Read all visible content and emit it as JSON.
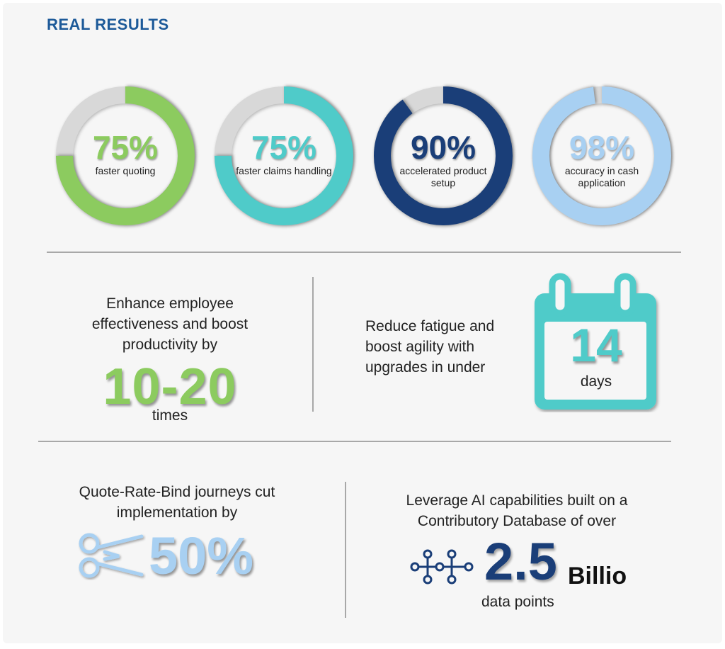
{
  "heading": "REAL RESULTS",
  "colors": {
    "heading": "#1d5a99",
    "track": "#d8d8d8",
    "green": "#8ccb5f",
    "teal": "#4fcbc9",
    "navy": "#1a3e78",
    "light_blue": "#a8d0f2",
    "text": "#222222"
  },
  "rings": [
    {
      "value": "75%",
      "label": "faster quoting",
      "fraction": 0.75,
      "color": "#8ccb5f"
    },
    {
      "value": "75%",
      "label": "faster claims handling",
      "fraction": 0.75,
      "color": "#4fcbc9"
    },
    {
      "value": "90%",
      "label": "accelerated product setup",
      "fraction": 0.9,
      "color": "#1a3e78"
    },
    {
      "value": "98%",
      "label": "accuracy in cash application",
      "fraction": 0.98,
      "color": "#a8d0f2"
    }
  ],
  "productivity": {
    "text": "Enhance employee effectiveness and boost productivity by",
    "value": "10-20",
    "unit": "times"
  },
  "upgrades": {
    "text": "Reduce fatigue and boost agility with upgrades in under",
    "value": "14",
    "unit": "days",
    "icon": "calendar-icon"
  },
  "implementation": {
    "text": "Quote-Rate-Bind journeys cut implementation by",
    "value": "50%",
    "icon": "scissors-icon"
  },
  "database": {
    "text": "Leverage AI capabilities built on a Contributory Database of over",
    "value": "2.5",
    "unit": "Billio",
    "caption": "data points",
    "icon": "network-icon"
  }
}
